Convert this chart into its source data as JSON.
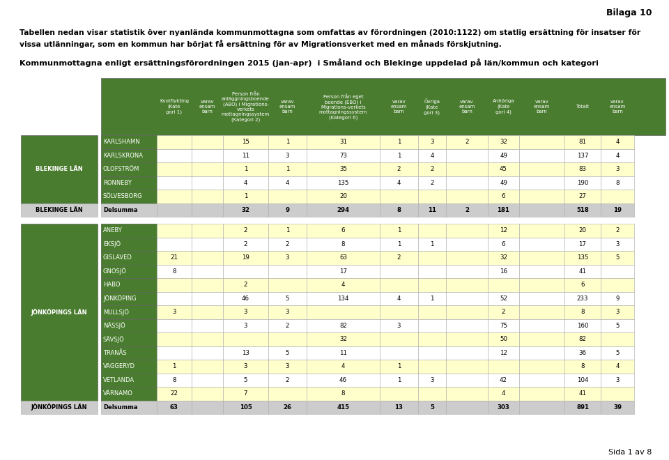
{
  "title_bilaga": "Bilaga 10",
  "intro_text": "Tabellen nedan visar statistik över nyanlända kommunmottagna som omfattas av förordningen (2010:1122) om statlig ersättning för insatser för\nvissa utlänningar, som en kommun har börjat få ersättning för av Migrationsverket med en månads förskjutning.",
  "subtitle": "Kommunmottagna enligt ersättningsförordningen 2015 (jan-apr)  i Småland och Blekinge uppdelad på län/kommun och kategori",
  "footer": "Sida 1 av 8",
  "header_color": "#4a7c2f",
  "header_text_color": "#ffffff",
  "lan_color": "#4a7c2f",
  "lan_text_color": "#ffffff",
  "row_yellow": "#ffffcc",
  "row_white": "#ffffff",
  "delsumma_color": "#cccccc",
  "col_headers": [
    "Kvotflykting\n(Kate\ngori 1)",
    "varav\nensam\nbarn",
    "Person från\nanläggningsboende\n(ABO) i Migrations-\nverkets\nmottagningssystem\n(Kategori 2)",
    "varav\nensam\nbarn",
    "Person från eget\nboende (EBO) i\nMigrations-verkets\nmottagningssystem\n(Kategori 6)",
    "varav\nensam\nbarn",
    "Övriga\n(Kate\ngori 3)",
    "varav\nensam\nbarn",
    "Anhöriga\n(Kate\ngori 4)",
    "varav\nensam\nbarn",
    "Totalt",
    "varav\nensam\nbarn"
  ],
  "blekinge_rows": [
    {
      "kommun": "KARLSHAMN",
      "vals": [
        "",
        "",
        15,
        1,
        31,
        1,
        3,
        2,
        32,
        "",
        81,
        4
      ],
      "yellow": true
    },
    {
      "kommun": "KARLSKRONA",
      "vals": [
        "",
        "",
        11,
        3,
        73,
        1,
        4,
        "",
        49,
        "",
        137,
        4
      ],
      "yellow": false
    },
    {
      "kommun": "OLOFSTRÖM",
      "vals": [
        "",
        "",
        1,
        1,
        35,
        2,
        2,
        "",
        45,
        "",
        83,
        3
      ],
      "yellow": true
    },
    {
      "kommun": "RONNEBY",
      "vals": [
        "",
        "",
        4,
        4,
        135,
        4,
        2,
        "",
        49,
        "",
        190,
        8
      ],
      "yellow": false
    },
    {
      "kommun": "SÖLVESBORG",
      "vals": [
        "",
        "",
        1,
        "",
        20,
        "",
        "",
        "",
        6,
        "",
        27,
        ""
      ],
      "yellow": true
    },
    {
      "kommun": "Delsumma",
      "vals": [
        "",
        "",
        32,
        9,
        294,
        8,
        11,
        2,
        181,
        "",
        518,
        19
      ],
      "delsumma": true
    }
  ],
  "blekinge_lan": "BLEKINGE LÄN",
  "jonkoping_rows": [
    {
      "kommun": "ANEBY",
      "vals": [
        "",
        "",
        2,
        1,
        6,
        1,
        "",
        "",
        12,
        "",
        20,
        2
      ],
      "yellow": true
    },
    {
      "kommun": "EKSJÖ",
      "vals": [
        "",
        "",
        2,
        2,
        8,
        1,
        1,
        "",
        6,
        "",
        17,
        3
      ],
      "yellow": false
    },
    {
      "kommun": "GISLAVED",
      "vals": [
        21,
        "",
        19,
        3,
        63,
        2,
        "",
        "",
        32,
        "",
        135,
        5
      ],
      "yellow": true
    },
    {
      "kommun": "GNOSJÖ",
      "vals": [
        8,
        "",
        "",
        "",
        17,
        "",
        "",
        "",
        16,
        "",
        41,
        ""
      ],
      "yellow": false
    },
    {
      "kommun": "HABO",
      "vals": [
        "",
        "",
        2,
        "",
        4,
        "",
        "",
        "",
        "",
        "",
        6,
        ""
      ],
      "yellow": true
    },
    {
      "kommun": "JÖNKÖPING",
      "vals": [
        "",
        "",
        46,
        5,
        134,
        4,
        1,
        "",
        52,
        "",
        233,
        9
      ],
      "yellow": false
    },
    {
      "kommun": "MULLSJÖ",
      "vals": [
        3,
        "",
        3,
        3,
        "",
        "",
        "",
        "",
        2,
        "",
        8,
        3
      ],
      "yellow": true
    },
    {
      "kommun": "NÄSSJÖ",
      "vals": [
        "",
        "",
        3,
        2,
        82,
        3,
        "",
        "",
        75,
        "",
        160,
        5
      ],
      "yellow": false
    },
    {
      "kommun": "SÄVSJÖ",
      "vals": [
        "",
        "",
        "",
        "",
        32,
        "",
        "",
        "",
        50,
        "",
        82,
        ""
      ],
      "yellow": true
    },
    {
      "kommun": "TRANÅS",
      "vals": [
        "",
        "",
        13,
        5,
        11,
        "",
        "",
        "",
        12,
        "",
        36,
        5
      ],
      "yellow": false
    },
    {
      "kommun": "VAGGERYD",
      "vals": [
        1,
        "",
        3,
        3,
        4,
        1,
        "",
        "",
        "",
        "",
        8,
        4
      ],
      "yellow": true
    },
    {
      "kommun": "VETLANDA",
      "vals": [
        8,
        "",
        5,
        2,
        46,
        1,
        3,
        "",
        42,
        "",
        104,
        3
      ],
      "yellow": false
    },
    {
      "kommun": "VÄRNAMO",
      "vals": [
        22,
        "",
        7,
        "",
        8,
        "",
        "",
        "",
        4,
        "",
        41,
        ""
      ],
      "yellow": true
    },
    {
      "kommun": "Delsumma",
      "vals": [
        63,
        "",
        105,
        26,
        415,
        13,
        5,
        "",
        303,
        "",
        891,
        39
      ],
      "delsumma": true
    }
  ],
  "jonkoping_lan": "JÖNKÖPINGS LÄN"
}
